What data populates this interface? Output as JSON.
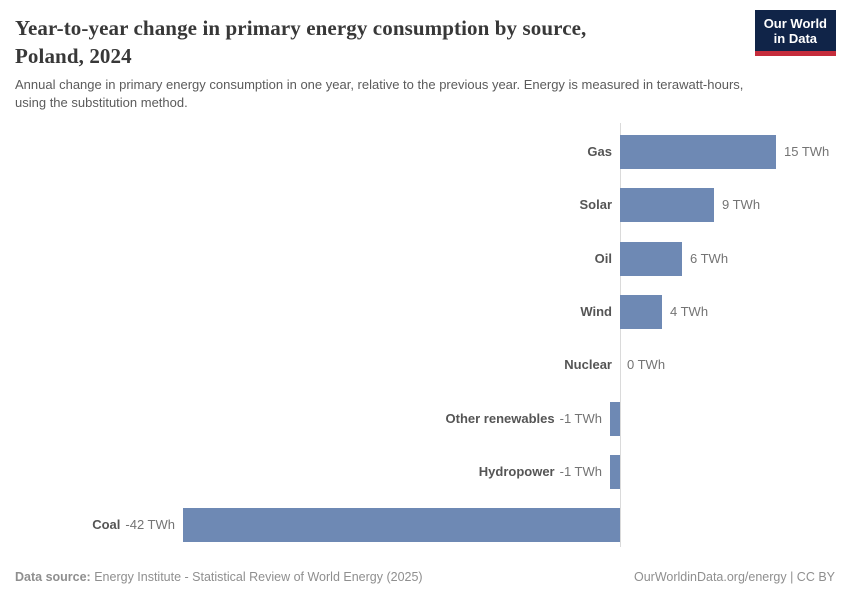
{
  "header": {
    "title_line1": "Year-to-year change in primary energy consumption by source,",
    "title_line2": "Poland, 2024",
    "subtitle": "Annual change in primary energy consumption in one year, relative to the previous year. Energy is measured in terawatt-hours, using the substitution method."
  },
  "logo": {
    "line1": "Our World",
    "line2": "in Data"
  },
  "chart_data": {
    "type": "bar",
    "orientation": "horizontal",
    "title": "Year-to-year change in primary energy consumption by source, Poland, 2024",
    "categories": [
      "Gas",
      "Solar",
      "Oil",
      "Wind",
      "Nuclear",
      "Other renewables",
      "Hydropower",
      "Coal"
    ],
    "values": [
      15,
      9,
      6,
      4,
      0,
      -1,
      -1,
      -42
    ],
    "value_labels": [
      "15 TWh",
      "9 TWh",
      "6 TWh",
      "4 TWh",
      "0 TWh",
      "-1 TWh",
      "-1 TWh",
      "-42 TWh"
    ],
    "unit": "TWh",
    "xlim": [
      -42,
      15
    ],
    "grid": false,
    "legend": "none"
  },
  "footer": {
    "data_source_label": "Data source:",
    "data_source": " Energy Institute - Statistical Review of World Energy (2025)",
    "attribution": "OurWorldinData.org/energy | CC BY"
  },
  "colors": {
    "bar": "#6e89b4",
    "logo_bg": "#102448",
    "logo_accent": "#c52c3b",
    "axis": "#dadada"
  }
}
